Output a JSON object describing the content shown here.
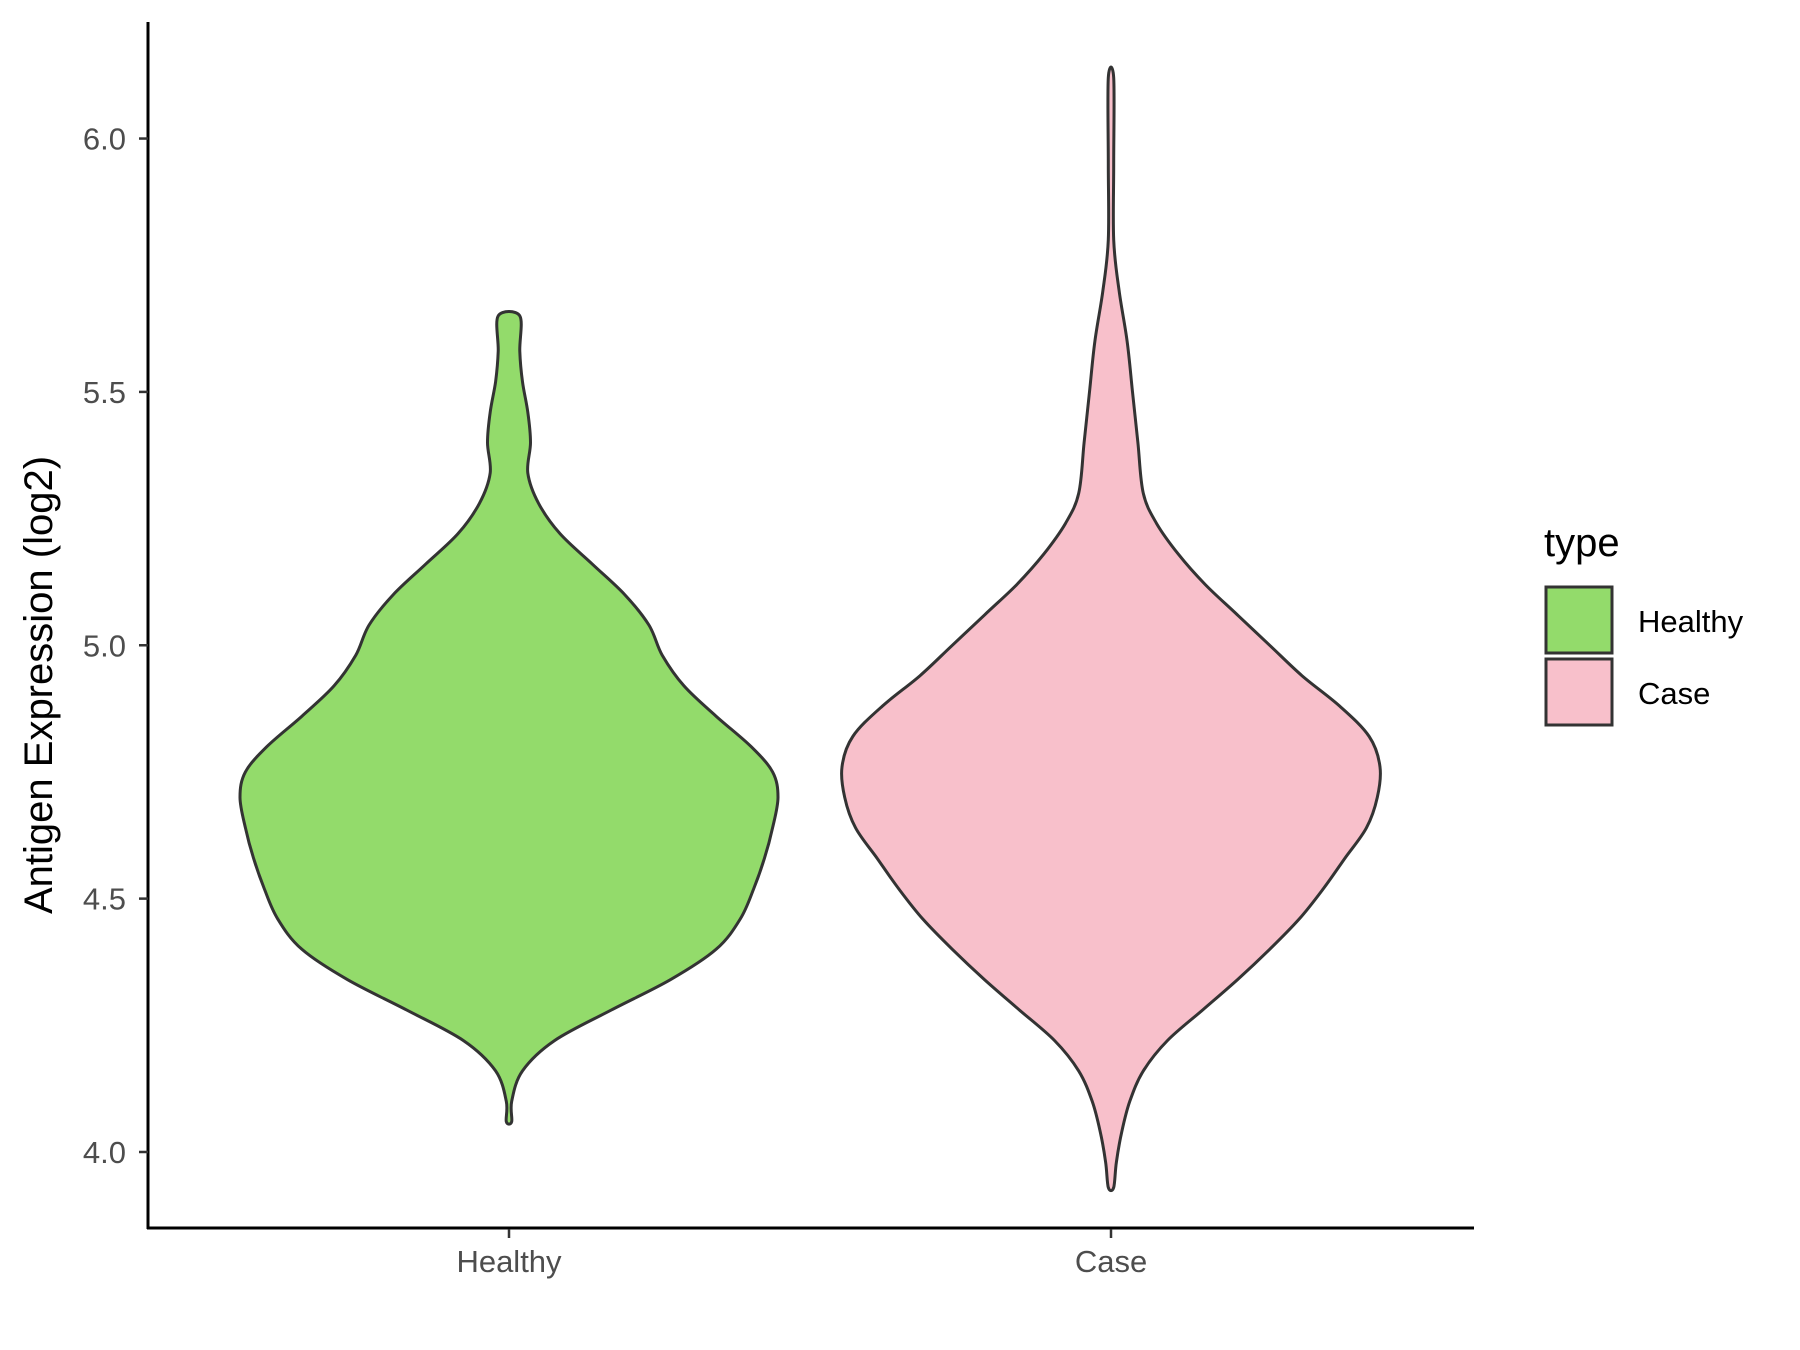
{
  "chart_data": {
    "type": "violin",
    "title": "",
    "xlabel": "",
    "ylabel": "Antigen Expression (log2)",
    "ylim": [
      3.85,
      6.23
    ],
    "yticks": [
      4.0,
      4.5,
      5.0,
      5.5,
      6.0
    ],
    "ytick_labels": [
      "4.0",
      "4.5",
      "5.0",
      "5.5",
      "6.0"
    ],
    "categories": [
      "Healthy",
      "Case"
    ],
    "legend": {
      "title": "type",
      "position": "right",
      "entries": [
        "Healthy",
        "Case"
      ]
    },
    "grid": false,
    "series": [
      {
        "name": "Healthy",
        "color": "#93DB6B",
        "min": 4.06,
        "max": 5.65,
        "profile": [
          [
            4.06,
            0.01
          ],
          [
            4.1,
            0.01
          ],
          [
            4.16,
            0.05
          ],
          [
            4.22,
            0.17
          ],
          [
            4.28,
            0.38
          ],
          [
            4.34,
            0.6
          ],
          [
            4.4,
            0.77
          ],
          [
            4.46,
            0.86
          ],
          [
            4.52,
            0.91
          ],
          [
            4.58,
            0.95
          ],
          [
            4.64,
            0.98
          ],
          [
            4.7,
            1.0
          ],
          [
            4.75,
            0.98
          ],
          [
            4.8,
            0.9
          ],
          [
            4.86,
            0.77
          ],
          [
            4.92,
            0.65
          ],
          [
            4.98,
            0.57
          ],
          [
            5.04,
            0.52
          ],
          [
            5.1,
            0.43
          ],
          [
            5.16,
            0.31
          ],
          [
            5.22,
            0.19
          ],
          [
            5.28,
            0.11
          ],
          [
            5.34,
            0.07
          ],
          [
            5.4,
            0.08
          ],
          [
            5.46,
            0.07
          ],
          [
            5.52,
            0.05
          ],
          [
            5.58,
            0.04
          ],
          [
            5.65,
            0.04
          ]
        ]
      },
      {
        "name": "Case",
        "color": "#F8C0CB",
        "min": 3.93,
        "max": 6.12,
        "profile": [
          [
            3.93,
            0.01
          ],
          [
            3.98,
            0.02
          ],
          [
            4.04,
            0.04
          ],
          [
            4.1,
            0.07
          ],
          [
            4.16,
            0.12
          ],
          [
            4.22,
            0.21
          ],
          [
            4.28,
            0.34
          ],
          [
            4.34,
            0.47
          ],
          [
            4.4,
            0.59
          ],
          [
            4.46,
            0.7
          ],
          [
            4.52,
            0.79
          ],
          [
            4.58,
            0.87
          ],
          [
            4.64,
            0.95
          ],
          [
            4.7,
            0.99
          ],
          [
            4.76,
            1.0
          ],
          [
            4.82,
            0.96
          ],
          [
            4.88,
            0.85
          ],
          [
            4.94,
            0.71
          ],
          [
            5.0,
            0.59
          ],
          [
            5.06,
            0.47
          ],
          [
            5.12,
            0.35
          ],
          [
            5.18,
            0.25
          ],
          [
            5.24,
            0.17
          ],
          [
            5.3,
            0.12
          ],
          [
            5.4,
            0.1
          ],
          [
            5.5,
            0.08
          ],
          [
            5.6,
            0.06
          ],
          [
            5.7,
            0.03
          ],
          [
            5.8,
            0.01
          ],
          [
            5.95,
            0.01
          ],
          [
            6.12,
            0.01
          ]
        ]
      }
    ]
  }
}
